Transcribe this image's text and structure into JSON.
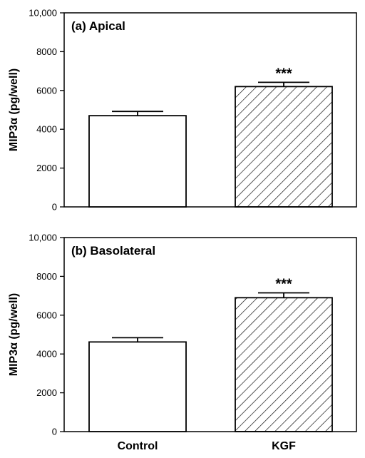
{
  "chart_data": [
    {
      "type": "bar",
      "title": "(a) Apical",
      "ylabel": "MIP3α (pg/well)",
      "categories": [
        "Control",
        "KGF"
      ],
      "values": [
        4700,
        6200
      ],
      "errors": [
        220,
        220
      ],
      "bar_styles": [
        "open",
        "hatched"
      ],
      "significance": [
        "",
        "***"
      ],
      "ylim": [
        0,
        10000
      ],
      "yticks": [
        "0",
        "2000",
        "4000",
        "6000",
        "8000",
        "10,000"
      ],
      "grid": false
    },
    {
      "type": "bar",
      "title": "(b) Basolateral",
      "ylabel": "MIP3α (pg/well)",
      "categories": [
        "Control",
        "KGF"
      ],
      "values": [
        4620,
        6900
      ],
      "errors": [
        220,
        250
      ],
      "bar_styles": [
        "open",
        "hatched"
      ],
      "significance": [
        "",
        "***"
      ],
      "ylim": [
        0,
        10000
      ],
      "yticks": [
        "0",
        "2000",
        "4000",
        "6000",
        "8000",
        "10,000"
      ],
      "grid": false
    }
  ],
  "x_categories": [
    "Control",
    "KGF"
  ],
  "colors": {
    "ink": "#000000",
    "background": "#ffffff"
  }
}
